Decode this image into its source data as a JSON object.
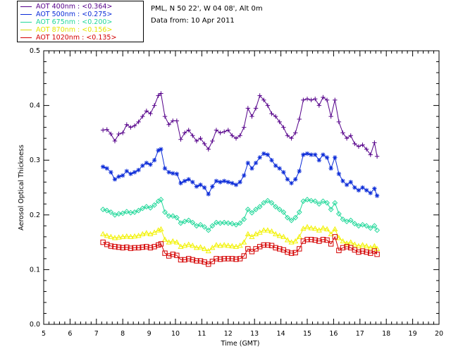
{
  "header": {
    "location": "PML, N 50 22', W 04 08', Alt 0m",
    "date": "Data from: 10 Apr 2011"
  },
  "colors": {
    "aot400": "#55008a",
    "aot500": "#0b2bd8",
    "aot675": "#22d89a",
    "aot870": "#f2f200",
    "aot1020": "#d40000"
  },
  "chart_data": {
    "type": "line",
    "xlabel": "Time (GMT)",
    "ylabel": "Aerosol Optical Thickness",
    "xlim": [
      5,
      20
    ],
    "ylim": [
      0.0,
      0.5
    ],
    "xticks": [
      "5",
      "6",
      "7",
      "8",
      "9",
      "10",
      "11",
      "12",
      "13",
      "14",
      "15",
      "16",
      "17",
      "18",
      "19",
      "20"
    ],
    "yticks": [
      "0.0",
      "0.1",
      "0.2",
      "0.3",
      "0.4",
      "0.5"
    ],
    "grid": false,
    "legend_position": "top-left",
    "x": [
      7.25,
      7.4,
      7.55,
      7.7,
      7.85,
      8.0,
      8.15,
      8.3,
      8.45,
      8.6,
      8.75,
      8.9,
      9.05,
      9.2,
      9.35,
      9.45,
      9.6,
      9.75,
      9.9,
      10.05,
      10.2,
      10.35,
      10.5,
      10.65,
      10.8,
      10.95,
      11.1,
      11.25,
      11.4,
      11.55,
      11.7,
      11.85,
      12.0,
      12.15,
      12.3,
      12.45,
      12.6,
      12.75,
      12.9,
      13.05,
      13.2,
      13.35,
      13.5,
      13.65,
      13.8,
      13.95,
      14.1,
      14.25,
      14.4,
      14.55,
      14.7,
      14.85,
      15.0,
      15.15,
      15.3,
      15.45,
      15.6,
      15.75,
      15.9,
      16.05,
      16.2,
      16.35,
      16.5,
      16.65,
      16.8,
      16.95,
      17.1,
      17.25,
      17.4,
      17.55,
      17.65
    ],
    "series": [
      {
        "name": "AOT  400nm : <0.364>",
        "marker": "plus",
        "values": [
          0.355,
          0.356,
          0.348,
          0.335,
          0.348,
          0.35,
          0.365,
          0.36,
          0.363,
          0.37,
          0.38,
          0.39,
          0.385,
          0.4,
          0.418,
          0.422,
          0.38,
          0.365,
          0.372,
          0.372,
          0.338,
          0.35,
          0.355,
          0.345,
          0.335,
          0.34,
          0.33,
          0.32,
          0.335,
          0.355,
          0.35,
          0.352,
          0.355,
          0.345,
          0.34,
          0.345,
          0.36,
          0.395,
          0.38,
          0.395,
          0.418,
          0.41,
          0.4,
          0.385,
          0.38,
          0.37,
          0.36,
          0.345,
          0.34,
          0.35,
          0.375,
          0.41,
          0.412,
          0.41,
          0.412,
          0.4,
          0.415,
          0.41,
          0.38,
          0.41,
          0.37,
          0.35,
          0.34,
          0.345,
          0.33,
          0.325,
          0.328,
          0.32,
          0.31,
          0.332,
          0.307
        ]
      },
      {
        "name": "AOT  500nm : <0.275>",
        "marker": "star",
        "values": [
          0.288,
          0.285,
          0.278,
          0.265,
          0.27,
          0.272,
          0.28,
          0.275,
          0.278,
          0.282,
          0.29,
          0.295,
          0.292,
          0.3,
          0.318,
          0.32,
          0.285,
          0.278,
          0.276,
          0.275,
          0.258,
          0.262,
          0.265,
          0.26,
          0.252,
          0.255,
          0.25,
          0.238,
          0.252,
          0.262,
          0.26,
          0.262,
          0.26,
          0.258,
          0.255,
          0.26,
          0.272,
          0.295,
          0.285,
          0.295,
          0.305,
          0.312,
          0.31,
          0.3,
          0.29,
          0.285,
          0.278,
          0.265,
          0.258,
          0.265,
          0.28,
          0.31,
          0.312,
          0.31,
          0.31,
          0.3,
          0.31,
          0.305,
          0.285,
          0.305,
          0.275,
          0.262,
          0.255,
          0.26,
          0.25,
          0.245,
          0.25,
          0.245,
          0.24,
          0.248,
          0.235
        ]
      },
      {
        "name": "AOT  675nm : <0.200>",
        "marker": "diamond",
        "values": [
          0.21,
          0.208,
          0.205,
          0.2,
          0.202,
          0.203,
          0.206,
          0.204,
          0.205,
          0.208,
          0.212,
          0.215,
          0.213,
          0.218,
          0.225,
          0.228,
          0.205,
          0.198,
          0.198,
          0.195,
          0.185,
          0.188,
          0.19,
          0.186,
          0.18,
          0.182,
          0.178,
          0.172,
          0.18,
          0.186,
          0.185,
          0.186,
          0.185,
          0.184,
          0.182,
          0.185,
          0.192,
          0.21,
          0.204,
          0.21,
          0.215,
          0.222,
          0.226,
          0.222,
          0.215,
          0.21,
          0.205,
          0.195,
          0.19,
          0.195,
          0.205,
          0.225,
          0.228,
          0.226,
          0.225,
          0.22,
          0.225,
          0.222,
          0.21,
          0.222,
          0.202,
          0.192,
          0.188,
          0.19,
          0.184,
          0.18,
          0.182,
          0.18,
          0.176,
          0.18,
          0.172
        ]
      },
      {
        "name": "AOT  870nm : <0.156>",
        "marker": "triangle",
        "values": [
          0.165,
          0.162,
          0.16,
          0.158,
          0.159,
          0.16,
          0.161,
          0.16,
          0.161,
          0.162,
          0.165,
          0.167,
          0.165,
          0.168,
          0.172,
          0.174,
          0.155,
          0.15,
          0.152,
          0.15,
          0.142,
          0.144,
          0.146,
          0.144,
          0.14,
          0.141,
          0.138,
          0.134,
          0.14,
          0.145,
          0.144,
          0.145,
          0.144,
          0.143,
          0.142,
          0.144,
          0.15,
          0.165,
          0.16,
          0.165,
          0.168,
          0.172,
          0.172,
          0.17,
          0.165,
          0.162,
          0.16,
          0.154,
          0.15,
          0.152,
          0.16,
          0.175,
          0.178,
          0.176,
          0.175,
          0.172,
          0.176,
          0.174,
          0.165,
          0.174,
          0.158,
          0.152,
          0.148,
          0.15,
          0.146,
          0.143,
          0.145,
          0.143,
          0.14,
          0.143,
          0.138
        ]
      },
      {
        "name": "AOT 1020nm : <0.135>",
        "marker": "square",
        "values": [
          0.15,
          0.146,
          0.143,
          0.142,
          0.141,
          0.14,
          0.141,
          0.139,
          0.14,
          0.14,
          0.141,
          0.142,
          0.14,
          0.142,
          0.145,
          0.147,
          0.13,
          0.125,
          0.128,
          0.126,
          0.118,
          0.118,
          0.12,
          0.118,
          0.116,
          0.116,
          0.114,
          0.11,
          0.115,
          0.12,
          0.119,
          0.12,
          0.12,
          0.12,
          0.119,
          0.12,
          0.125,
          0.138,
          0.133,
          0.138,
          0.142,
          0.145,
          0.145,
          0.144,
          0.14,
          0.138,
          0.136,
          0.132,
          0.13,
          0.131,
          0.138,
          0.152,
          0.155,
          0.155,
          0.154,
          0.152,
          0.155,
          0.154,
          0.147,
          0.16,
          0.135,
          0.14,
          0.142,
          0.14,
          0.136,
          0.132,
          0.134,
          0.132,
          0.13,
          0.134,
          0.128
        ]
      }
    ]
  }
}
